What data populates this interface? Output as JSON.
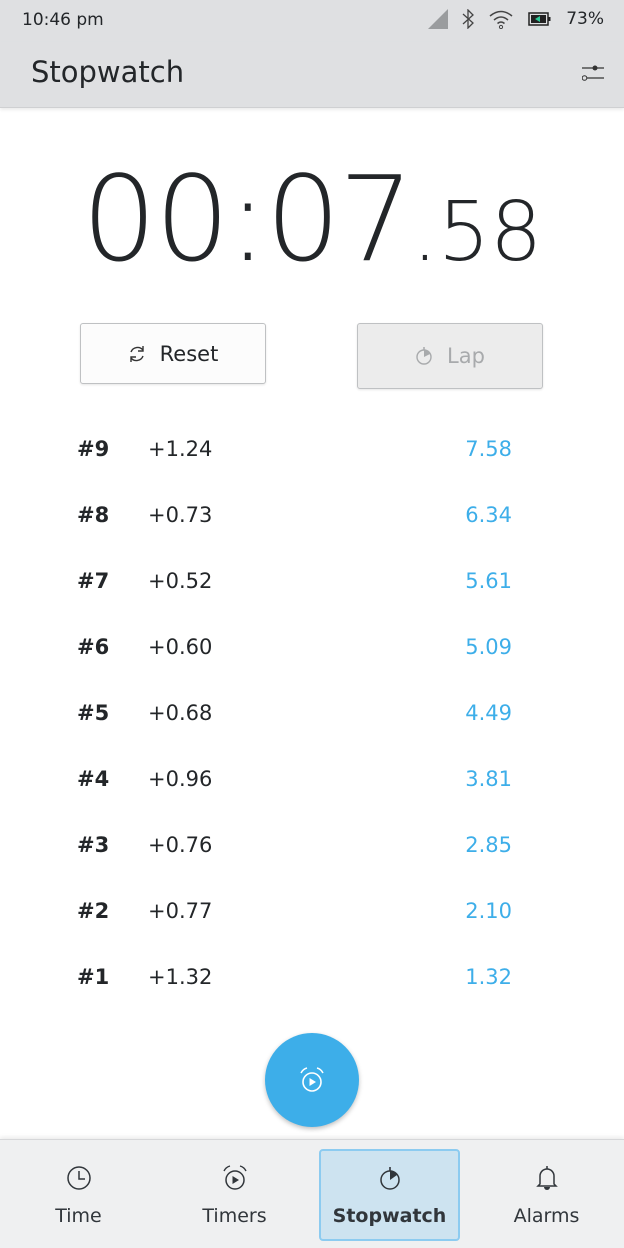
{
  "status_bar": {
    "time": "10:46 pm",
    "battery": "73%",
    "icons": [
      "signal-icon",
      "bluetooth-icon",
      "wifi-icon",
      "battery-charging-icon"
    ]
  },
  "header": {
    "title": "Stopwatch",
    "settings_icon": "sliders-icon"
  },
  "stopwatch": {
    "main": "00:07",
    "fraction": ".58"
  },
  "buttons": {
    "reset": "Reset",
    "lap": "Lap",
    "lap_enabled": false
  },
  "laps": [
    {
      "number": "#9",
      "diff": "+1.24",
      "total": "7.58"
    },
    {
      "number": "#8",
      "diff": "+0.73",
      "total": "6.34"
    },
    {
      "number": "#7",
      "diff": "+0.52",
      "total": "5.61"
    },
    {
      "number": "#6",
      "diff": "+0.60",
      "total": "5.09"
    },
    {
      "number": "#5",
      "diff": "+0.68",
      "total": "4.49"
    },
    {
      "number": "#4",
      "diff": "+0.96",
      "total": "3.81"
    },
    {
      "number": "#3",
      "diff": "+0.76",
      "total": "2.85"
    },
    {
      "number": "#2",
      "diff": "+0.77",
      "total": "2.10"
    },
    {
      "number": "#1",
      "diff": "+1.32",
      "total": "1.32"
    }
  ],
  "nav": {
    "tabs": [
      {
        "label": "Time"
      },
      {
        "label": "Timers"
      },
      {
        "label": "Stopwatch",
        "active": true
      },
      {
        "label": "Alarms"
      }
    ]
  },
  "colors": {
    "accent": "#3daee9",
    "bar": "#dfe0e2",
    "active_tab": "#cde3f0"
  }
}
